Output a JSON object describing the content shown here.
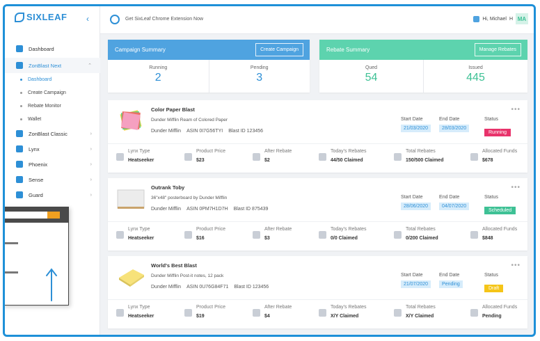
{
  "app": {
    "logo": "SIXLEAF"
  },
  "sidebar": {
    "items": [
      {
        "label": "Dashboard",
        "icon": "layers-icon"
      },
      {
        "label": "ZonBlast Next",
        "icon": "zonblast-icon",
        "expanded": true,
        "children": [
          {
            "label": "Dashboard",
            "active": true
          },
          {
            "label": "Create Campaign"
          },
          {
            "label": "Rebate Monitor"
          },
          {
            "label": "Wallet"
          }
        ]
      },
      {
        "label": "ZonBlast Classic",
        "icon": "zonblast-classic-icon"
      },
      {
        "label": "Lynx",
        "icon": "lynx-icon"
      },
      {
        "label": "Phoenix",
        "icon": "phoenix-icon"
      },
      {
        "label": "Sense",
        "icon": "sense-icon"
      },
      {
        "label": "Guard",
        "icon": "guard-icon"
      }
    ]
  },
  "topbar": {
    "extension_text": "Get SixLeaf Chrome Extension Now",
    "greeting": "Hi, Michael",
    "greeting_suffix": "H",
    "avatar_initials": "MA"
  },
  "campaign_summary": {
    "title": "Campaign Summary",
    "button": "Create Campaign",
    "color": "#4fa3e0",
    "stats": [
      {
        "label": "Running",
        "value": "2"
      },
      {
        "label": "Pending",
        "value": "3"
      }
    ]
  },
  "rebate_summary": {
    "title": "Rebate Summary",
    "button": "Manage Rebates",
    "color": "#5dd3ae",
    "stats": [
      {
        "label": "Qued",
        "value": "54"
      },
      {
        "label": "Issued",
        "value": "445"
      }
    ]
  },
  "labels": {
    "start_date": "Start Date",
    "end_date": "End Date",
    "status": "Status",
    "lynx_type": "Lynx Type",
    "product_price": "Product Price",
    "after_rebate": "After Rebate",
    "todays_rebates": "Today's Rebates",
    "total_rebates": "Total Rebates",
    "allocated_funds": "Allocated Funds",
    "more": "•••"
  },
  "campaigns": [
    {
      "name": "Color Paper Blast",
      "description": "Dunder Mifflin Ream of Colored Paper",
      "brand": "Dunder Mifflin",
      "asin": "ASIN 0I7G56TYI",
      "blast_id": "Blast ID 123456",
      "start_date": "21/03/2020",
      "end_date": "28/03/2020",
      "status": "Running",
      "status_color": "#e8336b",
      "status_text_color": "#ffffff",
      "lynx_type": "Heatseeker",
      "product_price": "$23",
      "after_rebate": "$2",
      "todays_rebates": "44/50 Claimed",
      "total_rebates": "150/500 Claimed",
      "allocated_funds": "$678"
    },
    {
      "name": "Outrank Toby",
      "description": "36\"x48\" posterboard by Dunder Mifflin",
      "brand": "Dunder Mifflin",
      "asin": "ASIN 0PM7H1D7H",
      "blast_id": "Blast ID 875439",
      "start_date": "28/06/2020",
      "end_date": "04/07/2020",
      "status": "Scheduled",
      "status_color": "#3ec195",
      "status_text_color": "#ffffff",
      "lynx_type": "Heatseeker",
      "product_price": "$16",
      "after_rebate": "$3",
      "todays_rebates": "0/0 Claimed",
      "total_rebates": "0/200 Claimed",
      "allocated_funds": "$848"
    },
    {
      "name": "World's Best Blast",
      "description": "Dunder Mifflin Post-it notes, 12 pack",
      "brand": "Dunder Mifflin",
      "asin": "ASIN 0U76G84F71",
      "blast_id": "Blast ID 123456",
      "start_date": "21/07/2020",
      "end_date": "Pending",
      "status": "Draft",
      "status_color": "#f5c518",
      "status_text_color": "#ffffff",
      "lynx_type": "Heatseeker",
      "product_price": "$19",
      "after_rebate": "$4",
      "todays_rebates": "X/Y Claimed",
      "total_rebates": "X/Y Claimed",
      "allocated_funds": "Pending"
    }
  ]
}
